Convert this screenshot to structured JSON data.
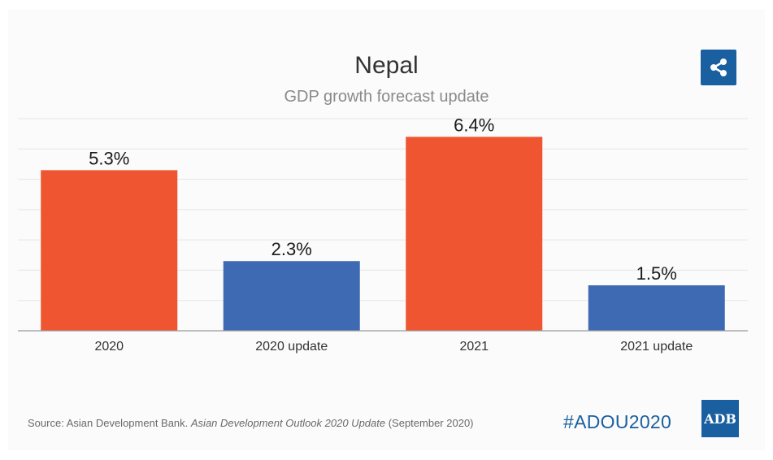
{
  "title": "Nepal",
  "subtitle": "GDP growth forecast update",
  "chart_data": {
    "type": "bar",
    "categories": [
      "2020",
      "2020 update",
      "2021",
      "2021 update"
    ],
    "values": [
      5.3,
      2.3,
      6.4,
      1.5
    ],
    "value_labels": [
      "5.3%",
      "2.3%",
      "6.4%",
      "1.5%"
    ],
    "bar_colors": [
      "#ef5530",
      "#3e6ab3",
      "#ef5530",
      "#3e6ab3"
    ],
    "ylim": [
      0,
      7
    ],
    "grid": true,
    "legend": "none",
    "xlabel": "",
    "ylabel": ""
  },
  "source": {
    "prefix": "Source: Asian Development Bank. ",
    "publication": "Asian Development Outlook 2020 Update",
    "suffix": " (September 2020)"
  },
  "hashtag": "#ADOU2020",
  "logo_text": "ADB",
  "icons": {
    "share": "share-icon"
  }
}
